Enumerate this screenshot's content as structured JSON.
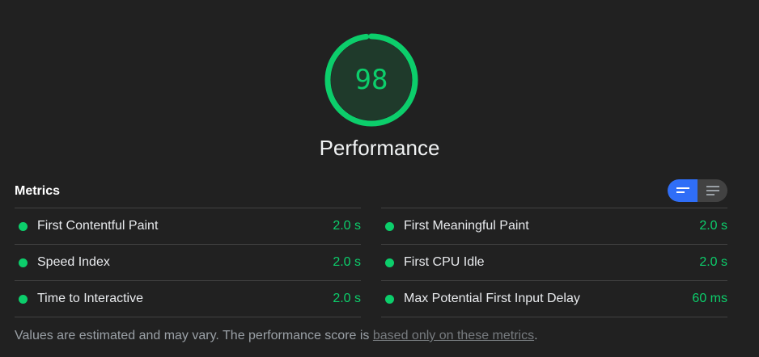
{
  "score": {
    "value": "98",
    "fraction": 0.98,
    "label": "Performance",
    "color": "#0cce6b"
  },
  "metrics": {
    "title": "Metrics",
    "toggle": {
      "options": [
        "expanded-view-icon",
        "list-view-icon"
      ],
      "active_color": "#2f6ef7"
    },
    "left": [
      {
        "name": "First Contentful Paint",
        "value": "2.0 s"
      },
      {
        "name": "Speed Index",
        "value": "2.0 s"
      },
      {
        "name": "Time to Interactive",
        "value": "2.0 s"
      }
    ],
    "right": [
      {
        "name": "First Meaningful Paint",
        "value": "2.0 s"
      },
      {
        "name": "First CPU Idle",
        "value": "2.0 s"
      },
      {
        "name": "Max Potential First Input Delay",
        "value": "60 ms"
      }
    ]
  },
  "footnote": {
    "text": "Values are estimated and may vary. The performance score is ",
    "link": "based only on these metrics",
    "end": "."
  }
}
